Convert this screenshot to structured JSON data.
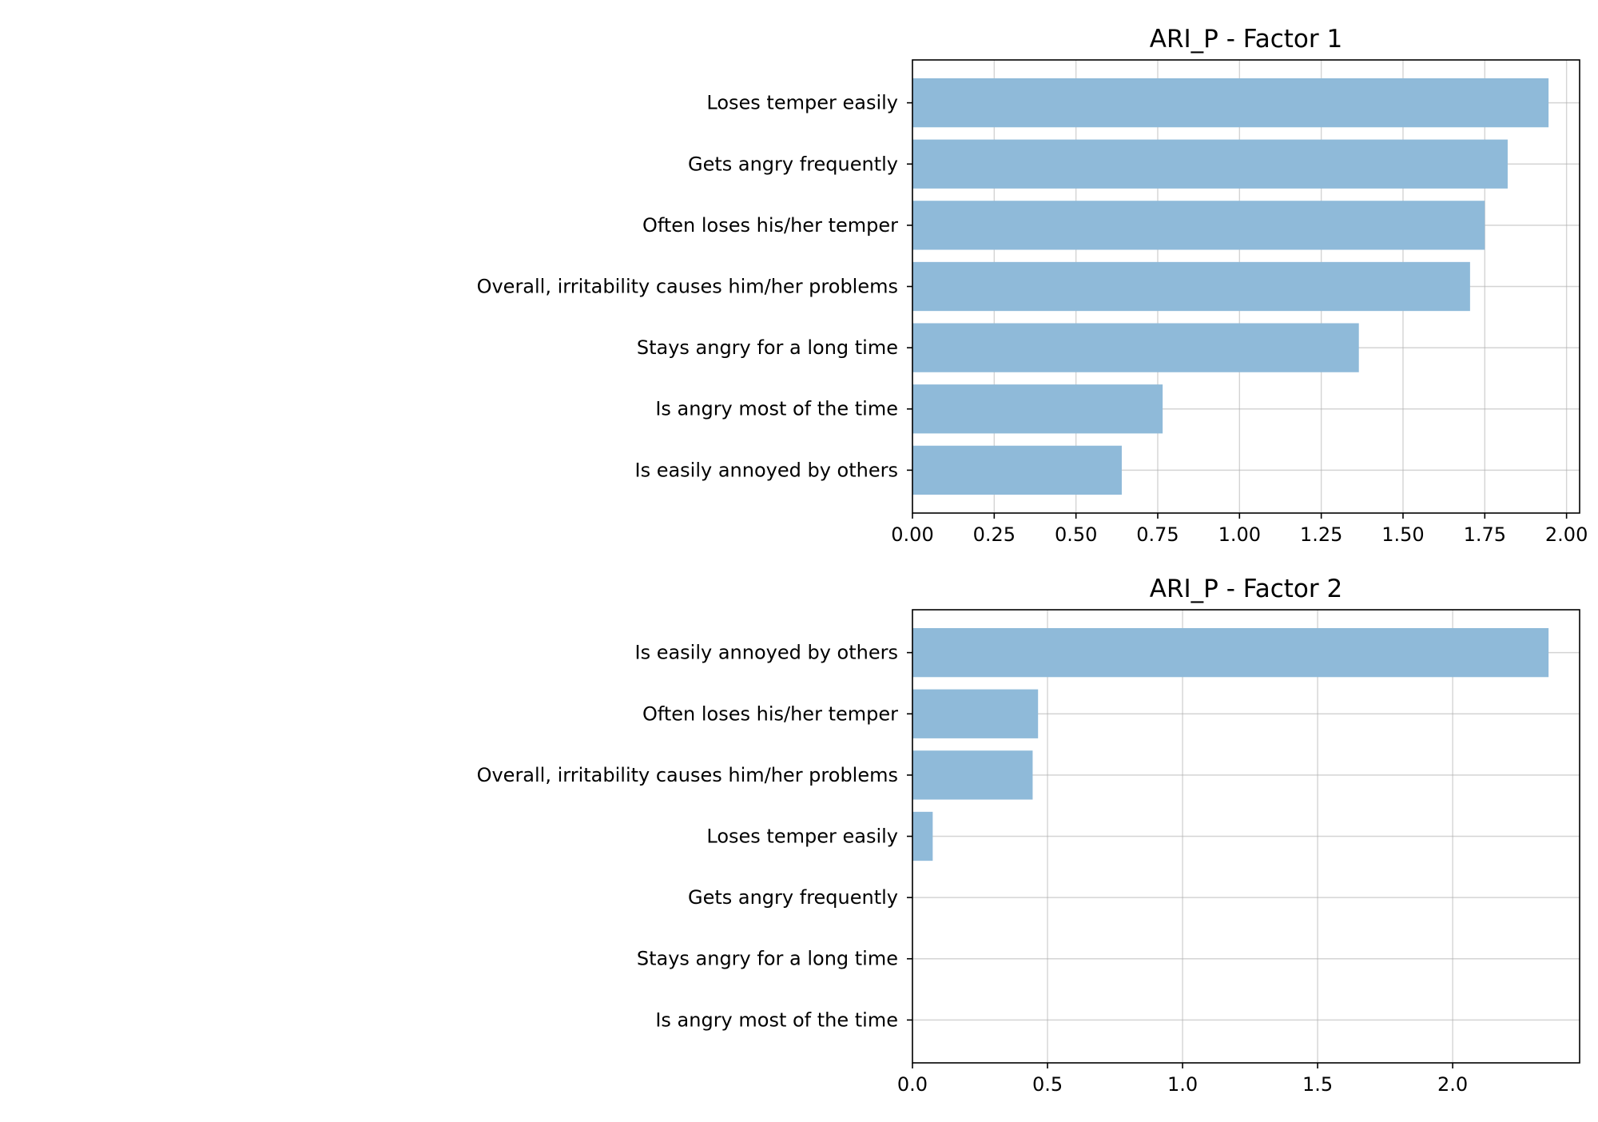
{
  "chart_data": [
    {
      "type": "bar",
      "orientation": "horizontal",
      "title": "ARI_P - Factor 1",
      "categories": [
        "Loses temper easily",
        "Gets angry frequently",
        "Often loses his/her temper",
        "Overall, irritability causes him/her problems",
        "Stays angry for a long time",
        "Is angry most of the time",
        "Is easily annoyed by others"
      ],
      "values": [
        1.945,
        1.82,
        1.75,
        1.705,
        1.365,
        0.765,
        0.64
      ],
      "xlim": [
        0,
        2.04
      ],
      "xticks": [
        0,
        0.25,
        0.5,
        0.75,
        1.0,
        1.25,
        1.5,
        1.75,
        2.0
      ],
      "xtick_labels": [
        "0.00",
        "0.25",
        "0.50",
        "0.75",
        "1.00",
        "1.25",
        "1.50",
        "1.75",
        "2.00"
      ],
      "grid": true,
      "bar_color": "#8fbad9"
    },
    {
      "type": "bar",
      "orientation": "horizontal",
      "title": "ARI_P - Factor 2",
      "categories": [
        "Is easily annoyed by others",
        "Often loses his/her temper",
        "Overall, irritability causes him/her problems",
        "Loses temper easily",
        "Gets angry frequently",
        "Stays angry for a long time",
        "Is angry most of the time"
      ],
      "values": [
        2.355,
        0.465,
        0.445,
        0.075,
        0,
        0,
        0
      ],
      "xlim": [
        0,
        2.47
      ],
      "xticks": [
        0,
        0.5,
        1.0,
        1.5,
        2.0
      ],
      "xtick_labels": [
        "0.0",
        "0.5",
        "1.0",
        "1.5",
        "2.0"
      ],
      "grid": true,
      "bar_color": "#8fbad9"
    }
  ]
}
